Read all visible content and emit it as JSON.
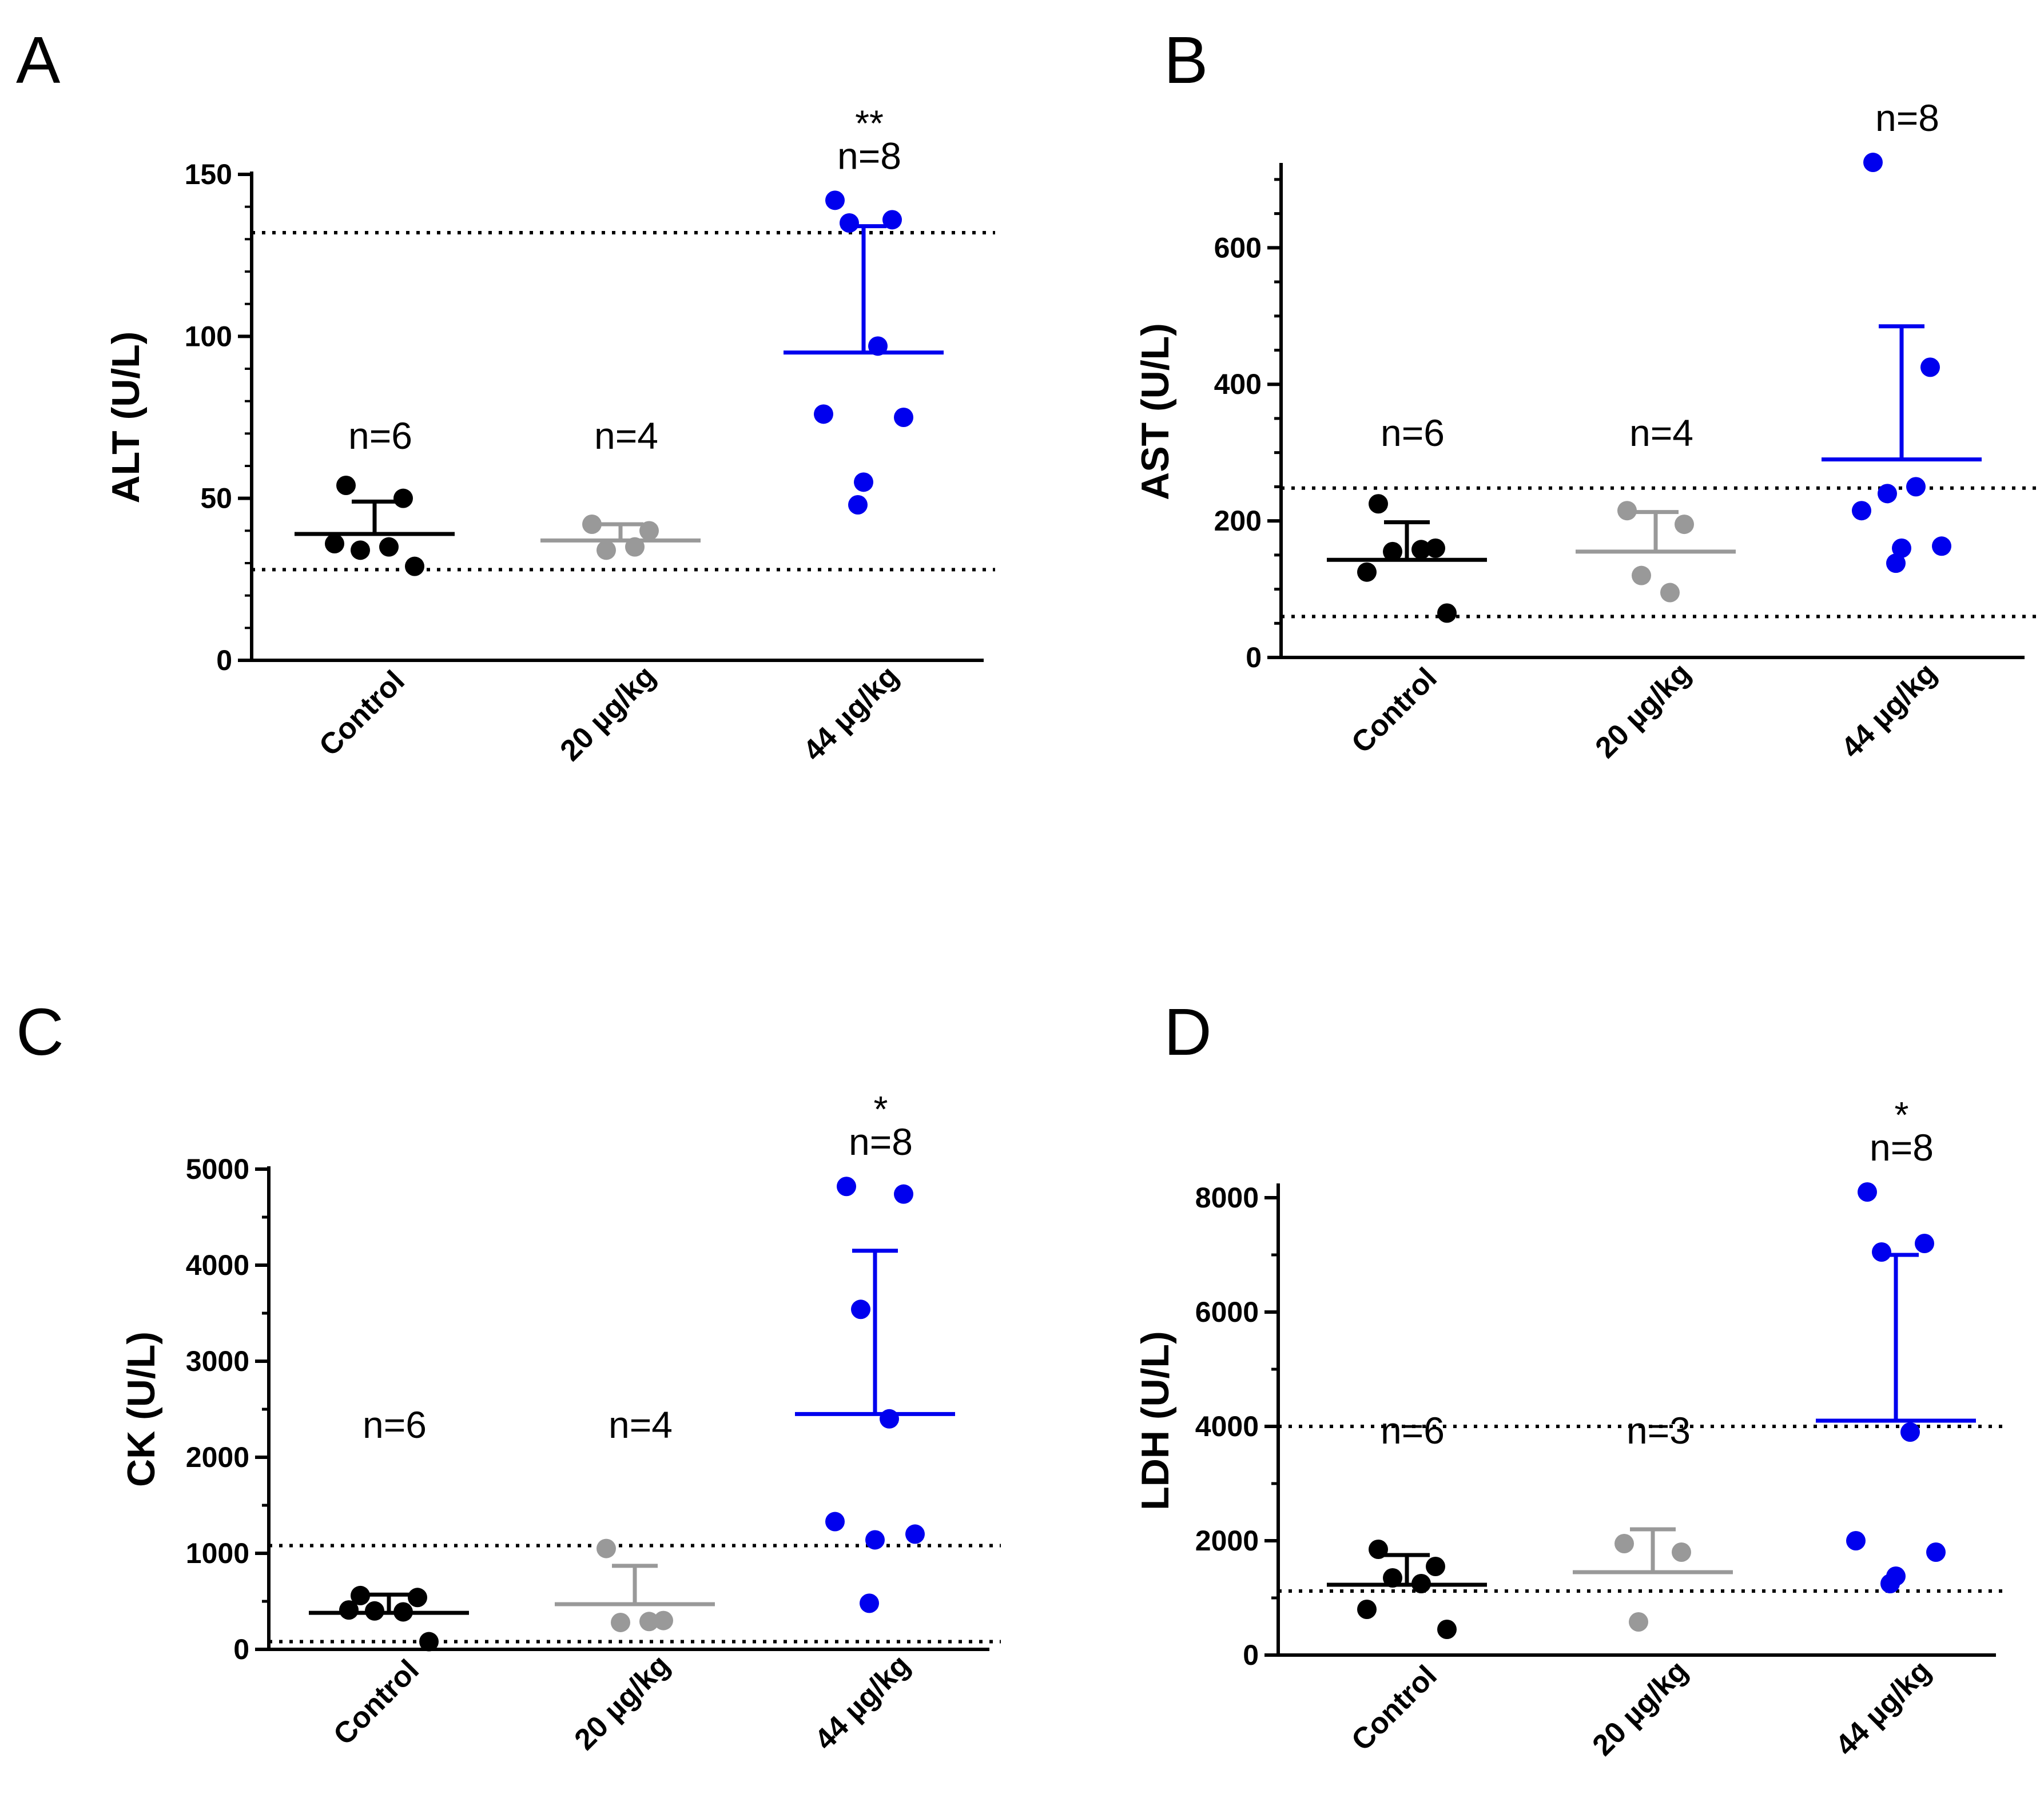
{
  "chart_data": [
    {
      "panel": "A",
      "type": "scatter",
      "ylabel": "ALT (U/L)",
      "categories": [
        "Control",
        "20 µg/kg",
        "44 µg/kg"
      ],
      "yticks": [
        0,
        50,
        100,
        150
      ],
      "ylim": [
        0,
        150
      ],
      "reference_lines": [
        28,
        132
      ],
      "groups": [
        {
          "name": "Control",
          "color": "#000000",
          "n_label": "n=6",
          "sig": "",
          "points": [
            54,
            50,
            34,
            35,
            36,
            29
          ],
          "mean": 39,
          "err_top": 49
        },
        {
          "name": "20 µg/kg",
          "color": "#999999",
          "n_label": "n=4",
          "sig": "",
          "points": [
            42,
            40,
            34,
            35
          ],
          "mean": 37,
          "err_top": 42
        },
        {
          "name": "44 µg/kg",
          "color": "#0000ee",
          "n_label": "n=8",
          "sig": "**",
          "points": [
            142,
            136,
            135,
            97,
            76,
            75,
            55,
            48
          ],
          "mean": 95,
          "err_top": 134
        }
      ]
    },
    {
      "panel": "B",
      "type": "scatter",
      "ylabel": "AST (U/L)",
      "categories": [
        "Control",
        "20 µg/kg",
        "44 µg/kg"
      ],
      "yticks": [
        0,
        200,
        400,
        600
      ],
      "ylim": [
        0,
        720
      ],
      "reference_lines": [
        60,
        248
      ],
      "groups": [
        {
          "name": "Control",
          "color": "#000000",
          "n_label": "n=6",
          "sig": "",
          "points": [
            225,
            160,
            155,
            158,
            125,
            65
          ],
          "mean": 143,
          "err_top": 198
        },
        {
          "name": "20 µg/kg",
          "color": "#999999",
          "n_label": "n=4",
          "sig": "",
          "points": [
            215,
            195,
            120,
            95
          ],
          "mean": 155,
          "err_top": 213
        },
        {
          "name": "44 µg/kg",
          "color": "#0000ee",
          "n_label": "n=8",
          "sig": "",
          "points": [
            725,
            425,
            240,
            250,
            215,
            163,
            160,
            138
          ],
          "mean": 290,
          "err_top": 485
        }
      ]
    },
    {
      "panel": "C",
      "type": "scatter",
      "ylabel": "CK (U/L)",
      "categories": [
        "Control",
        "20 µg/kg",
        "44 µg/kg"
      ],
      "yticks": [
        0,
        1000,
        2000,
        3000,
        4000,
        5000
      ],
      "ylim": [
        0,
        5000
      ],
      "reference_lines": [
        80,
        1080
      ],
      "groups": [
        {
          "name": "Control",
          "color": "#000000",
          "n_label": "n=6",
          "sig": "",
          "points": [
            560,
            540,
            400,
            390,
            410,
            80
          ],
          "mean": 380,
          "err_top": 570
        },
        {
          "name": "20 µg/kg",
          "color": "#999999",
          "n_label": "n=4",
          "sig": "",
          "points": [
            1050,
            300,
            280,
            290
          ],
          "mean": 470,
          "err_top": 870
        },
        {
          "name": "44 µg/kg",
          "color": "#0000ee",
          "n_label": "n=8",
          "sig": "*",
          "points": [
            4820,
            4740,
            3540,
            2400,
            1330,
            1200,
            1140,
            480
          ],
          "mean": 2450,
          "err_top": 4150
        }
      ]
    },
    {
      "panel": "D",
      "type": "scatter",
      "ylabel": "LDH (U/L)",
      "categories": [
        "Control",
        "20 µg/kg",
        "44 µg/kg"
      ],
      "yticks": [
        0,
        2000,
        4000,
        6000,
        8000
      ],
      "ylim": [
        0,
        8200
      ],
      "reference_lines": [
        1120,
        4000
      ],
      "groups": [
        {
          "name": "Control",
          "color": "#000000",
          "n_label": "n=6",
          "sig": "",
          "points": [
            1850,
            1550,
            1350,
            1250,
            800,
            450
          ],
          "mean": 1230,
          "err_top": 1750
        },
        {
          "name": "20 µg/kg",
          "color": "#999999",
          "n_label": "n=3",
          "sig": "",
          "points": [
            1950,
            1800,
            580
          ],
          "mean": 1450,
          "err_top": 2200
        },
        {
          "name": "44 µg/kg",
          "color": "#0000ee",
          "n_label": "n=8",
          "sig": "*",
          "points": [
            8100,
            7200,
            7050,
            3900,
            2000,
            1800,
            1380,
            1250
          ],
          "mean": 4100,
          "err_top": 7000
        }
      ]
    }
  ]
}
